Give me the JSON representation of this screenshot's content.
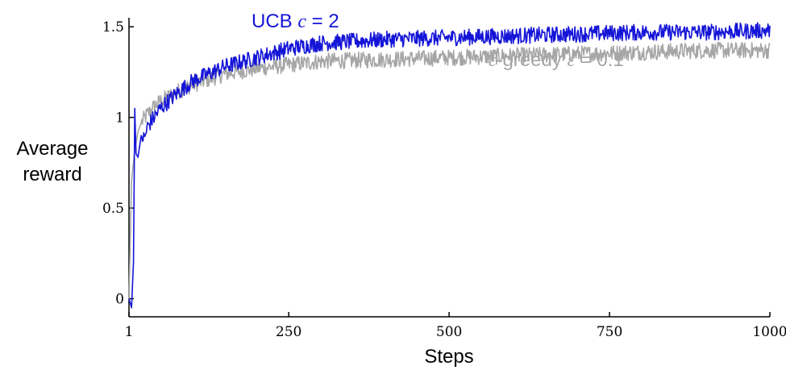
{
  "chart_data": {
    "type": "line",
    "xlabel": "Steps",
    "ylabel_lines": [
      "Average",
      "reward"
    ],
    "xlim": [
      1,
      1000
    ],
    "ylim": [
      -0.1,
      1.55
    ],
    "x_ticks": [
      1,
      250,
      500,
      750,
      1000
    ],
    "x_tick_labels": [
      "1",
      "250",
      "500",
      "750",
      "1000"
    ],
    "y_ticks": [
      0,
      0.5,
      1,
      1.5
    ],
    "y_tick_labels": [
      "0",
      "0.5",
      "1",
      "1.5"
    ],
    "grid": false,
    "legend": "inline labels",
    "series": [
      {
        "key": "egreedy",
        "label_prefix": "ε",
        "label_middle": "-greedy  ",
        "label_param": "ε",
        "label_suffix": " = 0.1",
        "color": "#a6a6a6",
        "x": [
          1,
          5,
          10,
          15,
          20,
          30,
          40,
          50,
          75,
          100,
          125,
          150,
          200,
          250,
          300,
          400,
          500,
          600,
          700,
          800,
          900,
          1000
        ],
        "y": [
          0.0,
          0.65,
          0.82,
          0.92,
          0.97,
          1.02,
          1.06,
          1.09,
          1.14,
          1.18,
          1.21,
          1.24,
          1.27,
          1.29,
          1.31,
          1.32,
          1.33,
          1.34,
          1.35,
          1.36,
          1.37,
          1.37
        ]
      },
      {
        "key": "ucb",
        "label_prefix": "UCB  ",
        "label_param": "c",
        "label_suffix": " = 2",
        "color": "#1515d8",
        "x": [
          1,
          5,
          8,
          10,
          12,
          15,
          18,
          20,
          25,
          30,
          40,
          50,
          75,
          100,
          125,
          150,
          200,
          250,
          300,
          400,
          500,
          600,
          700,
          800,
          900,
          1000
        ],
        "y": [
          0.0,
          -0.05,
          0.2,
          1.05,
          0.8,
          0.78,
          0.85,
          0.9,
          0.88,
          0.95,
          1.0,
          1.05,
          1.13,
          1.2,
          1.24,
          1.28,
          1.33,
          1.38,
          1.41,
          1.43,
          1.44,
          1.45,
          1.46,
          1.47,
          1.47,
          1.48
        ]
      }
    ]
  }
}
